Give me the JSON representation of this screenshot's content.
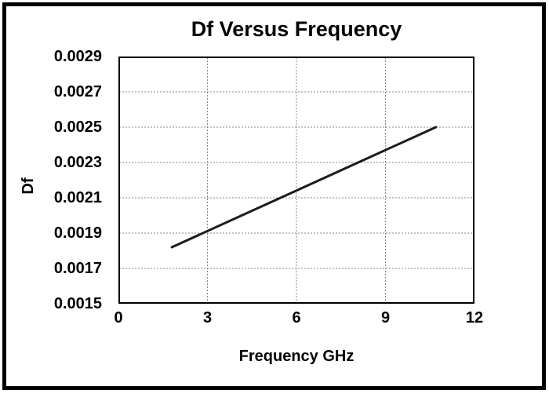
{
  "chart_data": {
    "type": "line",
    "title": "Df Versus Frequency",
    "xlabel": "Frequency GHz",
    "ylabel": "Df",
    "xlim": [
      0,
      12
    ],
    "ylim": [
      0.0015,
      0.0029
    ],
    "x_ticks": [
      "0",
      "3",
      "6",
      "9",
      "12"
    ],
    "y_ticks": [
      "0.0015",
      "0.0017",
      "0.0019",
      "0.0021",
      "0.0023",
      "0.0025",
      "0.0027",
      "0.0029"
    ],
    "x_gridlines": [
      3,
      6,
      9
    ],
    "y_gridlines": [
      0.0017,
      0.0019,
      0.0021,
      0.0023,
      0.0025,
      0.0027
    ],
    "grid_style": "dotted",
    "legend": "none",
    "series": [
      {
        "name": "Df",
        "x": [
          1.8,
          10.7
        ],
        "y": [
          0.00182,
          0.0025
        ]
      }
    ],
    "colors": {
      "line": "#1c1c1c",
      "gridline": "#858585",
      "axis_frame": "#000000",
      "text": "#000000",
      "background": "#ffffff"
    }
  }
}
